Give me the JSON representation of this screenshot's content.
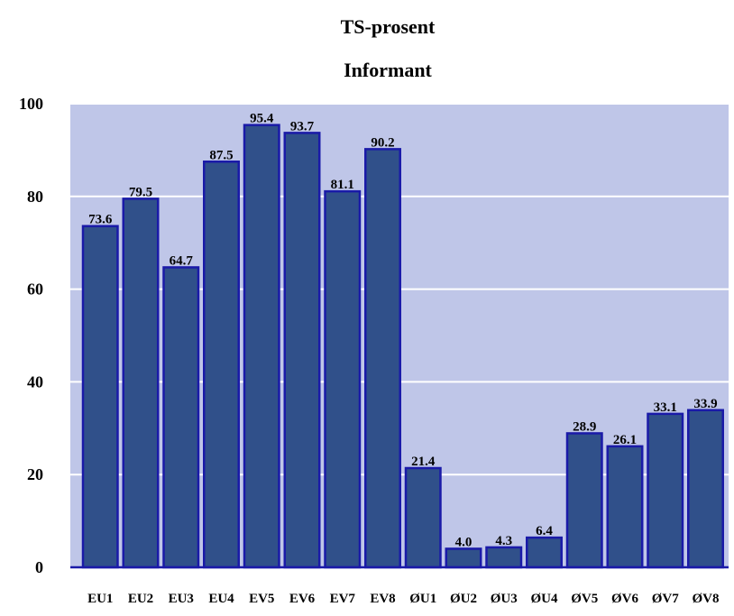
{
  "chart_data": {
    "type": "bar",
    "title": "TS-prosent",
    "subtitle": "Informant",
    "xlabel": "",
    "ylabel": "",
    "ylim": [
      0,
      100
    ],
    "yticks": [
      "0",
      "20",
      "40",
      "60",
      "80",
      "100"
    ],
    "grid": true,
    "legend": "none",
    "categories": [
      "EU1",
      "EU2",
      "EU3",
      "EU4",
      "EV5",
      "EV6",
      "EV7",
      "EV8",
      "ØU1",
      "ØU2",
      "ØU3",
      "ØU4",
      "ØV5",
      "ØV6",
      "ØV7",
      "ØV8"
    ],
    "values": [
      73.6,
      79.5,
      64.7,
      87.5,
      95.4,
      93.7,
      81.1,
      90.2,
      21.4,
      4.0,
      4.3,
      6.4,
      28.9,
      26.1,
      33.1,
      33.9
    ],
    "value_labels": [
      "73.6",
      "79.5",
      "64.7",
      "87.5",
      "95.4",
      "93.7",
      "81.1",
      "90.2",
      "21.4",
      "4.0",
      "4.3",
      "6.4",
      "28.9",
      "26.1",
      "33.1",
      "33.9"
    ],
    "colors": {
      "plot_background": "#bfc6e8",
      "bar_fill": "#30508a",
      "bar_edge": "#1a1aa8",
      "gridline": "#ffffff",
      "axis_line": "#1a1aa8"
    }
  }
}
